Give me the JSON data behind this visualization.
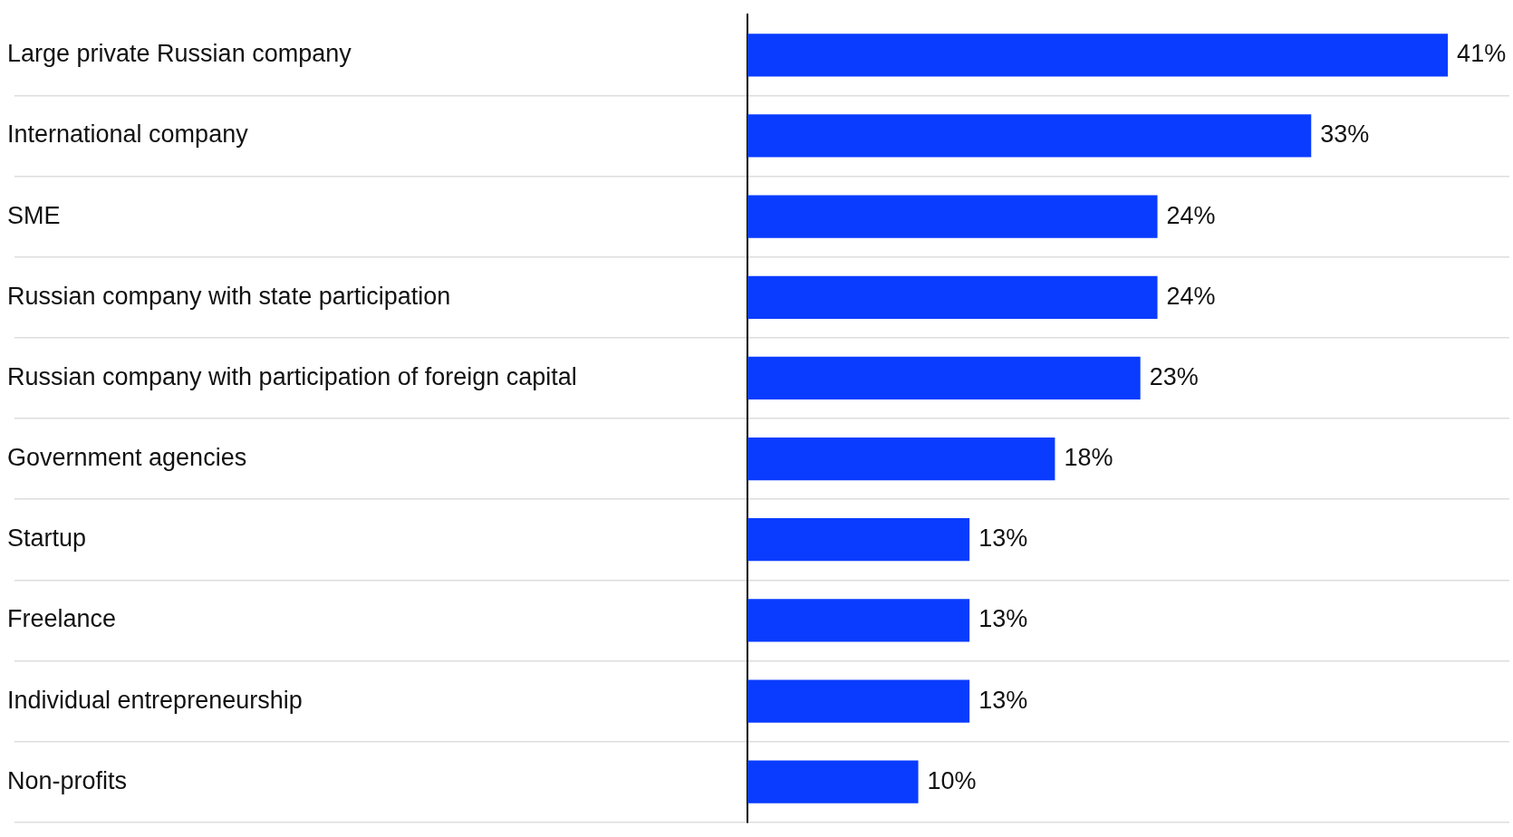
{
  "chart_data": {
    "type": "bar",
    "orientation": "horizontal",
    "categories": [
      "Large private Russian company",
      "International company",
      "SME",
      "Russian company with state participation",
      "Russian company with participation of foreign capital",
      "Government agencies",
      "Startup",
      "Freelance",
      "Individual entrepreneurship",
      "Non-profits"
    ],
    "values": [
      41,
      33,
      24,
      24,
      23,
      18,
      13,
      13,
      13,
      10
    ],
    "value_labels": [
      "41%",
      "33%",
      "24%",
      "24%",
      "23%",
      "18%",
      "13%",
      "13%",
      "13%",
      "10%"
    ],
    "color": "#0a3cff",
    "xlim": [
      0,
      44.6
    ],
    "tick_labels": "y",
    "grid": "y",
    "legend": false
  }
}
